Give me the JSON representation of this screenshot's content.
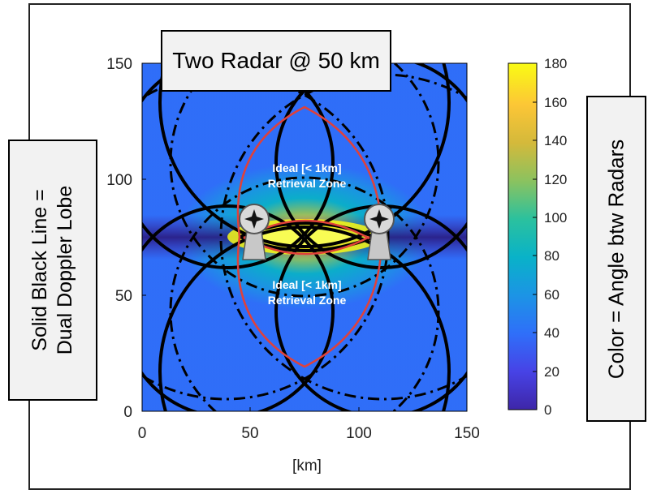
{
  "title": "Two Radar @ 50 km",
  "left_annotation": {
    "line1": "Solid Black Line =",
    "line2": "Dual Doppler Lobe"
  },
  "right_annotation": "Color = Angle btw Radars",
  "zone_labels": [
    {
      "line1": "Ideal [< 1km]",
      "line2": "Retrieval Zone"
    },
    {
      "line1": "Ideal [< 1km]",
      "line2": "Retrieval Zone"
    }
  ],
  "x_axis": {
    "label": "[km]",
    "ticks": [
      "0",
      "50",
      "100",
      "150"
    ],
    "range": [
      0,
      150
    ]
  },
  "y_axis": {
    "ticks": [
      "0",
      "50",
      "100",
      "150"
    ],
    "range": [
      0,
      150
    ]
  },
  "colorbar": {
    "ticks": [
      "0",
      "20",
      "40",
      "60",
      "80",
      "100",
      "120",
      "140",
      "160",
      "180"
    ],
    "range": [
      0,
      180
    ]
  },
  "radars": [
    {
      "x_km": 50,
      "y_km": 75
    },
    {
      "x_km": 100,
      "y_km": 75
    }
  ],
  "colors": {
    "solid_lobe": "#000000",
    "dashdot_lobe": "#000000",
    "ideal_zone_outline": "#e0413a",
    "zone_text": "#ffffff",
    "colormap": [
      "#3e26a8",
      "#4743e6",
      "#2f6ff9",
      "#1c94e5",
      "#09b2c8",
      "#2bc19e",
      "#8bc25f",
      "#d4b93b",
      "#fcc636",
      "#f9fb14"
    ]
  }
}
